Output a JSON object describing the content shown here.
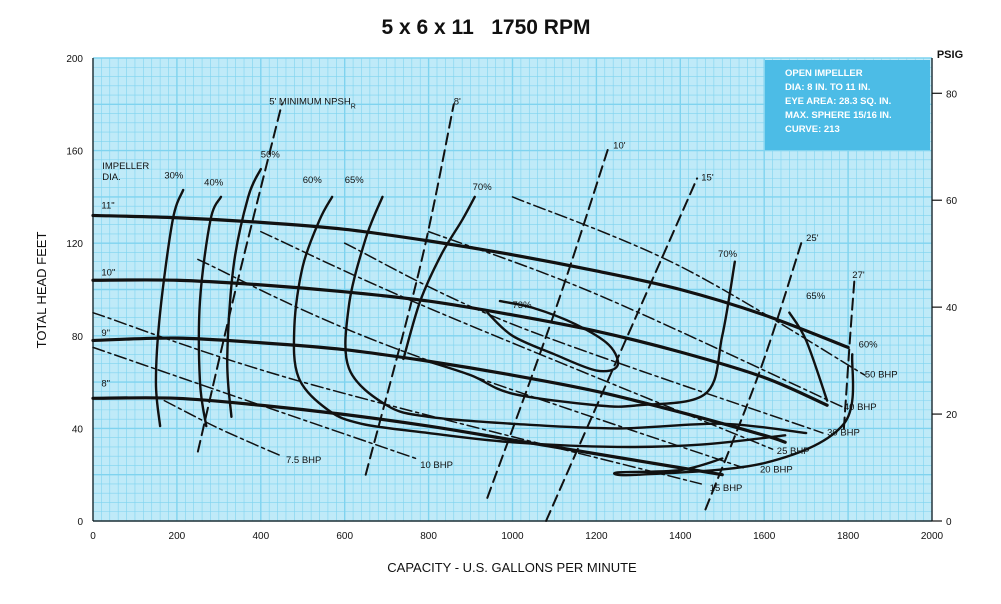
{
  "chart_data": {
    "type": "line",
    "title": "5 x 6 x 11   1750 RPM",
    "xlabel": "CAPACITY - U.S. GALLONS PER MINUTE",
    "ylabel": "TOTAL HEAD FEET",
    "y2label": "PSIG",
    "xlim": [
      0,
      2000
    ],
    "ylim": [
      0,
      200
    ],
    "y2lim": [
      0,
      86.6
    ],
    "x_ticks": [
      "0",
      "200",
      "400",
      "600",
      "800",
      "1000",
      "1200",
      "1400",
      "1600",
      "1800",
      "2000"
    ],
    "y_ticks": [
      "0",
      "40",
      "80",
      "120",
      "160",
      "200"
    ],
    "y2_ticks": [
      "0",
      "20",
      "40",
      "60",
      "80"
    ],
    "grid": true,
    "colors": {
      "grid": "#7fd3ef",
      "background": "#bfeaf8",
      "curves": "#111111",
      "infobox": "#4cbce6"
    },
    "info_box": [
      "OPEN IMPELLER",
      "DIA: 8 IN. TO 11 IN.",
      "EYE AREA: 28.3 SQ. IN.",
      "MAX. SPHERE 15/16 IN.",
      "CURVE: 213"
    ],
    "impeller_label": [
      "IMPELLER",
      "DIA."
    ],
    "npsh_label": "5' MINIMUM NPSH",
    "npsh_sub": "R",
    "series": [
      {
        "name": "11\"",
        "kind": "impeller",
        "label_at": [
          20,
          135
        ],
        "points": [
          [
            0,
            132
          ],
          [
            200,
            131
          ],
          [
            400,
            129
          ],
          [
            600,
            126
          ],
          [
            800,
            121
          ],
          [
            1000,
            115
          ],
          [
            1200,
            108
          ],
          [
            1400,
            100
          ],
          [
            1600,
            89
          ],
          [
            1800,
            75
          ]
        ]
      },
      {
        "name": "10\"",
        "kind": "impeller",
        "label_at": [
          20,
          106
        ],
        "points": [
          [
            0,
            104
          ],
          [
            200,
            104
          ],
          [
            400,
            102
          ],
          [
            600,
            99
          ],
          [
            800,
            95
          ],
          [
            1000,
            89
          ],
          [
            1200,
            82
          ],
          [
            1400,
            73
          ],
          [
            1600,
            62
          ],
          [
            1750,
            50
          ]
        ]
      },
      {
        "name": "9\"",
        "kind": "impeller",
        "label_at": [
          20,
          80
        ],
        "points": [
          [
            0,
            78
          ],
          [
            200,
            79
          ],
          [
            400,
            77
          ],
          [
            600,
            74
          ],
          [
            800,
            69
          ],
          [
            1000,
            63
          ],
          [
            1200,
            56
          ],
          [
            1400,
            47
          ],
          [
            1600,
            37
          ],
          [
            1650,
            34
          ]
        ]
      },
      {
        "name": "8\"",
        "kind": "impeller",
        "label_at": [
          20,
          58
        ],
        "points": [
          [
            0,
            53
          ],
          [
            200,
            53
          ],
          [
            400,
            50
          ],
          [
            600,
            46
          ],
          [
            800,
            41
          ],
          [
            1000,
            35
          ],
          [
            1200,
            29
          ],
          [
            1400,
            23
          ],
          [
            1500,
            20
          ]
        ]
      },
      {
        "name": "30%",
        "kind": "efficiency",
        "label_at": [
          170,
          148
        ],
        "points": [
          [
            160,
            41
          ],
          [
            150,
            60
          ],
          [
            160,
            90
          ],
          [
            190,
            130
          ],
          [
            215,
            143
          ]
        ]
      },
      {
        "name": "40%",
        "kind": "efficiency",
        "label_at": [
          265,
          145
        ],
        "points": [
          [
            270,
            41
          ],
          [
            255,
            60
          ],
          [
            255,
            95
          ],
          [
            280,
            130
          ],
          [
            305,
            140
          ]
        ]
      },
      {
        "name": "50%",
        "kind": "efficiency",
        "label_at": [
          400,
          157
        ],
        "points": [
          [
            330,
            45
          ],
          [
            320,
            70
          ],
          [
            335,
            110
          ],
          [
            370,
            140
          ],
          [
            400,
            152
          ]
        ]
      },
      {
        "name": "60%",
        "kind": "efficiency",
        "label_at": [
          500,
          146
        ],
        "points": [
          [
            1650,
            37
          ],
          [
            1450,
            33
          ],
          [
            1250,
            32
          ],
          [
            1000,
            34
          ],
          [
            800,
            38
          ],
          [
            640,
            42
          ],
          [
            560,
            48
          ],
          [
            490,
            62
          ],
          [
            480,
            84
          ],
          [
            500,
            110
          ],
          [
            540,
            130
          ],
          [
            570,
            140
          ]
        ]
      },
      {
        "name": "65%",
        "kind": "efficiency",
        "label_at": [
          600,
          146
        ],
        "points": [
          [
            1700,
            38
          ],
          [
            1500,
            42
          ],
          [
            1250,
            40
          ],
          [
            1000,
            42
          ],
          [
            800,
            45
          ],
          [
            700,
            50
          ],
          [
            610,
            66
          ],
          [
            610,
            93
          ],
          [
            650,
            122
          ],
          [
            690,
            140
          ]
        ]
      },
      {
        "name": "70%",
        "kind": "efficiency",
        "label_at": [
          905,
          143
        ],
        "points": [
          [
            740,
            70
          ],
          [
            780,
            95
          ],
          [
            830,
            115
          ],
          [
            880,
            130
          ],
          [
            910,
            140
          ]
        ]
      },
      {
        "name": "70%",
        "kind": "efficiency",
        "label_at": [
          1490,
          114
        ],
        "points": [
          [
            780,
            70
          ],
          [
            900,
            63
          ],
          [
            1000,
            55
          ],
          [
            1200,
            50
          ],
          [
            1300,
            50
          ],
          [
            1460,
            55
          ],
          [
            1500,
            80
          ],
          [
            1530,
            112
          ]
        ]
      },
      {
        "name": "73%",
        "kind": "efficiency",
        "label_at": [
          1000,
          92
        ],
        "points": [
          [
            970,
            95
          ],
          [
            1050,
            92
          ],
          [
            1150,
            85
          ],
          [
            1230,
            76
          ],
          [
            1250,
            67
          ],
          [
            1200,
            65
          ],
          [
            1100,
            72
          ],
          [
            1000,
            80
          ],
          [
            940,
            90
          ]
        ]
      },
      {
        "name": "65%",
        "kind": "efficiency",
        "label_at": [
          1700,
          96
        ],
        "points": [
          [
            1750,
            52
          ],
          [
            1700,
            78
          ],
          [
            1660,
            90
          ]
        ]
      },
      {
        "name": "60%",
        "kind": "efficiency",
        "label_at": [
          1825,
          75
        ],
        "points": [
          [
            1500,
            27
          ],
          [
            1400,
            22
          ],
          [
            1250,
            21
          ],
          [
            1300,
            20
          ],
          [
            1600,
            25
          ],
          [
            1790,
            42
          ],
          [
            1810,
            72
          ]
        ]
      },
      {
        "name": "50 BHP",
        "kind": "bhp",
        "label_at": [
          1840,
          62
        ],
        "points": [
          [
            1000,
            140
          ],
          [
            1400,
            110
          ],
          [
            1840,
            63
          ]
        ]
      },
      {
        "name": "40 BHP",
        "kind": "bhp",
        "label_at": [
          1790,
          48
        ],
        "points": [
          [
            800,
            125
          ],
          [
            1200,
            98
          ],
          [
            1790,
            49
          ]
        ]
      },
      {
        "name": "30 BHP",
        "kind": "bhp",
        "label_at": [
          1750,
          37
        ],
        "points": [
          [
            600,
            120
          ],
          [
            1000,
            85
          ],
          [
            1740,
            38
          ]
        ]
      },
      {
        "name": "25 BHP",
        "kind": "bhp",
        "label_at": [
          1630,
          29
        ],
        "points": [
          [
            400,
            125
          ],
          [
            800,
            92
          ],
          [
            1620,
            31
          ]
        ]
      },
      {
        "name": "20 BHP",
        "kind": "bhp",
        "label_at": [
          1590,
          21
        ],
        "points": [
          [
            250,
            113
          ],
          [
            700,
            76
          ],
          [
            1550,
            23
          ]
        ]
      },
      {
        "name": "15 BHP",
        "kind": "bhp",
        "label_at": [
          1470,
          13
        ],
        "points": [
          [
            0,
            90
          ],
          [
            500,
            60
          ],
          [
            1450,
            16
          ]
        ]
      },
      {
        "name": "10 BHP",
        "kind": "bhp",
        "label_at": [
          780,
          23
        ],
        "points": [
          [
            0,
            75
          ],
          [
            400,
            50
          ],
          [
            770,
            27
          ]
        ]
      },
      {
        "name": "7.5 BHP",
        "kind": "bhp",
        "label_at": [
          460,
          25
        ],
        "points": [
          [
            170,
            52
          ],
          [
            300,
            40
          ],
          [
            450,
            28
          ]
        ]
      },
      {
        "name": "8'",
        "kind": "npsh",
        "label_at": [
          860,
          180
        ],
        "points": [
          [
            650,
            20
          ],
          [
            780,
            110
          ],
          [
            860,
            180
          ]
        ]
      },
      {
        "name": "10'",
        "kind": "npsh",
        "label_at": [
          1240,
          161
        ],
        "points": [
          [
            940,
            10
          ],
          [
            1100,
            90
          ],
          [
            1230,
            162
          ]
        ]
      },
      {
        "name": "15'",
        "kind": "npsh",
        "label_at": [
          1450,
          147
        ],
        "points": [
          [
            1080,
            0
          ],
          [
            1250,
            70
          ],
          [
            1440,
            148
          ]
        ]
      },
      {
        "name": "25'",
        "kind": "npsh",
        "label_at": [
          1700,
          121
        ],
        "points": [
          [
            1460,
            5
          ],
          [
            1590,
            65
          ],
          [
            1690,
            121
          ]
        ]
      },
      {
        "name": "27'",
        "kind": "npsh",
        "label_at": [
          1810,
          105
        ],
        "points": [
          [
            1790,
            40
          ],
          [
            1805,
            80
          ],
          [
            1815,
            104
          ]
        ]
      },
      {
        "name": "5' MINIMUM NPSH",
        "kind": "npsh",
        "label_at": [
          420,
          180
        ],
        "points": [
          [
            250,
            30
          ],
          [
            340,
            100
          ],
          [
            450,
            180
          ]
        ]
      }
    ]
  }
}
